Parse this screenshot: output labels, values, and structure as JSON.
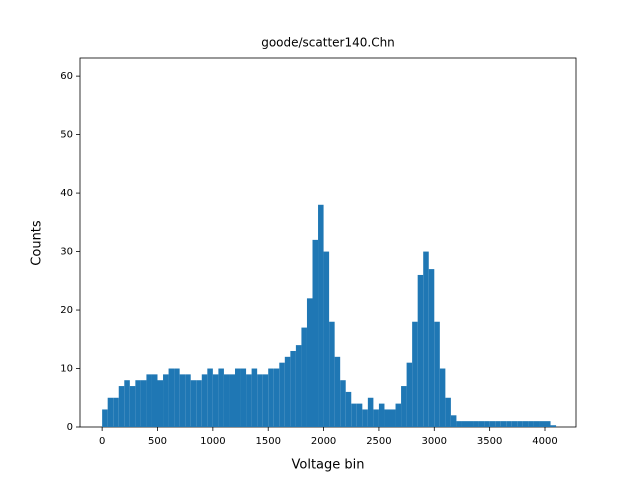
{
  "chart_data": {
    "type": "histogram",
    "title": "goode/scatter140.Chn",
    "x_label": "Voltage bin",
    "y_label": "Counts",
    "color": "#1f77b4",
    "grid": false,
    "bins": [
      0,
      50,
      100,
      150,
      200,
      250,
      300,
      350,
      400,
      450,
      500,
      550,
      600,
      650,
      700,
      750,
      800,
      850,
      900,
      950,
      1000,
      1050,
      1100,
      1150,
      1200,
      1250,
      1300,
      1350,
      1400,
      1450,
      1500,
      1550,
      1600,
      1650,
      1700,
      1750,
      1800,
      1850,
      1900,
      1950,
      2000,
      2050,
      2100,
      2150,
      2200,
      2250,
      2300,
      2350,
      2400,
      2450,
      2500,
      2550,
      2600,
      2650,
      2700,
      2750,
      2800,
      2850,
      2900,
      2950,
      3000,
      3050,
      3100,
      3150,
      3200,
      3250,
      3300,
      3350,
      3400,
      3450,
      3500,
      3550,
      3600,
      3650,
      3700,
      3750,
      3800,
      3850,
      3900,
      3950,
      4000,
      4050,
      4100
    ],
    "values": [
      3,
      5,
      5,
      7,
      8,
      7,
      8,
      8,
      9,
      9,
      8,
      9,
      10,
      10,
      9,
      9,
      8,
      8,
      9,
      10,
      9,
      10,
      9,
      9,
      10,
      10,
      9,
      10,
      9,
      9,
      10,
      10,
      11,
      12,
      13,
      14,
      17,
      22,
      32,
      38,
      30,
      18,
      12,
      8,
      6,
      4,
      4,
      3,
      5,
      3,
      4,
      3,
      3,
      4,
      7,
      11,
      18,
      26,
      30,
      27,
      18,
      10,
      5,
      2,
      1,
      1,
      1,
      1,
      1,
      1,
      1,
      1,
      1,
      1,
      1,
      1,
      1,
      1,
      1,
      1,
      1,
      0.3
    ],
    "xlim": [
      -200,
      4280
    ],
    "ylim": [
      0,
      63.1
    ],
    "xticks": [
      0,
      500,
      1000,
      1500,
      2000,
      2500,
      3000,
      3500,
      4000
    ],
    "yticks": [
      0,
      10,
      20,
      30,
      40,
      50,
      60
    ]
  }
}
